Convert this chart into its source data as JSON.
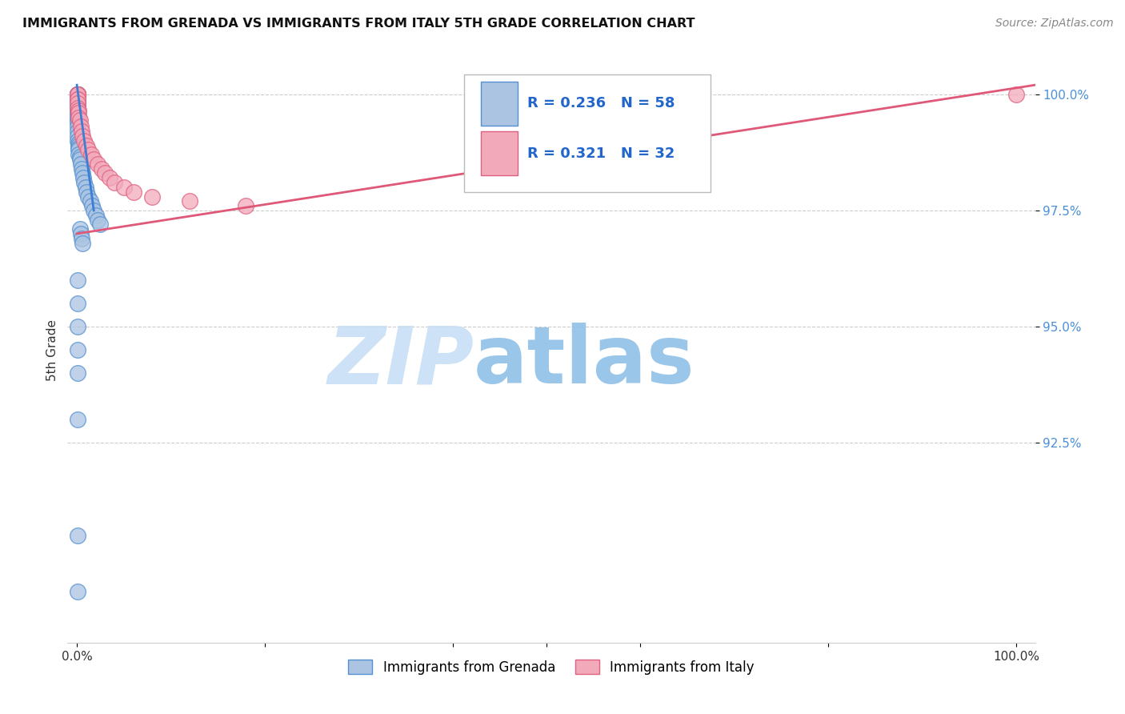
{
  "title": "IMMIGRANTS FROM GRENADA VS IMMIGRANTS FROM ITALY 5TH GRADE CORRELATION CHART",
  "source": "Source: ZipAtlas.com",
  "ylabel": "5th Grade",
  "ytick_labels": [
    "92.5%",
    "95.0%",
    "97.5%",
    "100.0%"
  ],
  "ytick_values": [
    0.925,
    0.95,
    0.975,
    1.0
  ],
  "xlim": [
    -0.01,
    1.02
  ],
  "ylim": [
    0.882,
    1.008
  ],
  "legend_r1": "0.236",
  "legend_n1": "58",
  "legend_r2": "0.321",
  "legend_n2": "32",
  "color_grenada": "#aac4e2",
  "color_italy": "#f2aabb",
  "edge_grenada": "#5590d0",
  "edge_italy": "#e06080",
  "trendline_grenada": "#3a7fd5",
  "trendline_italy": "#e05878",
  "grid_color": "#cccccc",
  "ytick_color": "#4a90d9",
  "background": "#ffffff",
  "watermark_zip": "ZIP",
  "watermark_atlas": "atlas",
  "watermark_color_zip": "#c8dff5",
  "watermark_color_atlas": "#8fc0e8",
  "legend_text_color": "#2266cc",
  "grenada_x": [
    0.0005,
    0.0005,
    0.0005,
    0.0005,
    0.0005,
    0.0005,
    0.0005,
    0.0005,
    0.0005,
    0.0005,
    0.0005,
    0.0005,
    0.0005,
    0.0005,
    0.0005,
    0.001,
    0.001,
    0.001,
    0.001,
    0.001,
    0.001,
    0.001,
    0.001,
    0.001,
    0.001,
    0.0015,
    0.0015,
    0.002,
    0.002,
    0.002,
    0.003,
    0.003,
    0.004,
    0.005,
    0.006,
    0.007,
    0.008,
    0.009,
    0.01,
    0.012,
    0.014,
    0.016,
    0.018,
    0.02,
    0.022,
    0.025,
    0.003,
    0.004,
    0.005,
    0.006,
    0.0005,
    0.0005,
    0.0005,
    0.0005,
    0.0005,
    0.0005,
    0.0005,
    0.0005
  ],
  "grenada_y": [
    1.0,
    1.0,
    1.0,
    1.0,
    1.0,
    1.0,
    1.0,
    1.0,
    1.0,
    0.9995,
    0.999,
    0.9985,
    0.998,
    0.9975,
    0.997,
    0.9965,
    0.996,
    0.9955,
    0.995,
    0.9945,
    0.994,
    0.993,
    0.992,
    0.991,
    0.99,
    0.9895,
    0.989,
    0.9885,
    0.988,
    0.987,
    0.9865,
    0.986,
    0.985,
    0.984,
    0.983,
    0.982,
    0.981,
    0.98,
    0.979,
    0.978,
    0.977,
    0.976,
    0.975,
    0.974,
    0.973,
    0.972,
    0.971,
    0.97,
    0.969,
    0.968,
    0.96,
    0.955,
    0.95,
    0.945,
    0.94,
    0.93,
    0.905,
    0.893
  ],
  "italy_x": [
    0.0005,
    0.0005,
    0.0005,
    0.0005,
    0.0005,
    0.0005,
    0.001,
    0.001,
    0.001,
    0.0015,
    0.002,
    0.002,
    0.003,
    0.004,
    0.005,
    0.006,
    0.008,
    0.01,
    0.012,
    0.015,
    0.018,
    0.022,
    0.026,
    0.03,
    0.035,
    0.04,
    0.05,
    0.06,
    0.08,
    0.12,
    0.18,
    1.0
  ],
  "italy_y": [
    1.0,
    1.0,
    1.0,
    1.0,
    1.0,
    0.999,
    0.999,
    0.998,
    0.997,
    0.9965,
    0.996,
    0.995,
    0.9945,
    0.993,
    0.992,
    0.991,
    0.99,
    0.989,
    0.988,
    0.987,
    0.986,
    0.985,
    0.984,
    0.983,
    0.982,
    0.981,
    0.98,
    0.979,
    0.978,
    0.977,
    0.976,
    1.0
  ]
}
